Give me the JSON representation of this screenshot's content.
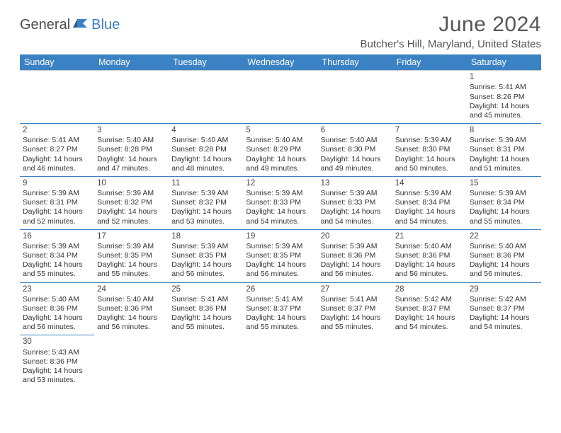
{
  "brand": {
    "part1": "General",
    "part2": "Blue"
  },
  "title": "June 2024",
  "location": "Butcher's Hill, Maryland, United States",
  "colors": {
    "header_bg": "#3b82c4",
    "header_text": "#ffffff",
    "border": "#3b82c4",
    "text": "#333333",
    "brand_gray": "#4a4a4a",
    "brand_blue": "#3b7fc4"
  },
  "typography": {
    "title_fontsize": 30,
    "location_fontsize": 15,
    "header_cell_fontsize": 12.5,
    "cell_fontsize": 10.5
  },
  "weekdays": [
    "Sunday",
    "Monday",
    "Tuesday",
    "Wednesday",
    "Thursday",
    "Friday",
    "Saturday"
  ],
  "weeks": [
    [
      null,
      null,
      null,
      null,
      null,
      null,
      {
        "n": "1",
        "sr": "Sunrise: 5:41 AM",
        "ss": "Sunset: 8:26 PM",
        "d1": "Daylight: 14 hours",
        "d2": "and 45 minutes."
      }
    ],
    [
      {
        "n": "2",
        "sr": "Sunrise: 5:41 AM",
        "ss": "Sunset: 8:27 PM",
        "d1": "Daylight: 14 hours",
        "d2": "and 46 minutes."
      },
      {
        "n": "3",
        "sr": "Sunrise: 5:40 AM",
        "ss": "Sunset: 8:28 PM",
        "d1": "Daylight: 14 hours",
        "d2": "and 47 minutes."
      },
      {
        "n": "4",
        "sr": "Sunrise: 5:40 AM",
        "ss": "Sunset: 8:28 PM",
        "d1": "Daylight: 14 hours",
        "d2": "and 48 minutes."
      },
      {
        "n": "5",
        "sr": "Sunrise: 5:40 AM",
        "ss": "Sunset: 8:29 PM",
        "d1": "Daylight: 14 hours",
        "d2": "and 49 minutes."
      },
      {
        "n": "6",
        "sr": "Sunrise: 5:40 AM",
        "ss": "Sunset: 8:30 PM",
        "d1": "Daylight: 14 hours",
        "d2": "and 49 minutes."
      },
      {
        "n": "7",
        "sr": "Sunrise: 5:39 AM",
        "ss": "Sunset: 8:30 PM",
        "d1": "Daylight: 14 hours",
        "d2": "and 50 minutes."
      },
      {
        "n": "8",
        "sr": "Sunrise: 5:39 AM",
        "ss": "Sunset: 8:31 PM",
        "d1": "Daylight: 14 hours",
        "d2": "and 51 minutes."
      }
    ],
    [
      {
        "n": "9",
        "sr": "Sunrise: 5:39 AM",
        "ss": "Sunset: 8:31 PM",
        "d1": "Daylight: 14 hours",
        "d2": "and 52 minutes."
      },
      {
        "n": "10",
        "sr": "Sunrise: 5:39 AM",
        "ss": "Sunset: 8:32 PM",
        "d1": "Daylight: 14 hours",
        "d2": "and 52 minutes."
      },
      {
        "n": "11",
        "sr": "Sunrise: 5:39 AM",
        "ss": "Sunset: 8:32 PM",
        "d1": "Daylight: 14 hours",
        "d2": "and 53 minutes."
      },
      {
        "n": "12",
        "sr": "Sunrise: 5:39 AM",
        "ss": "Sunset: 8:33 PM",
        "d1": "Daylight: 14 hours",
        "d2": "and 54 minutes."
      },
      {
        "n": "13",
        "sr": "Sunrise: 5:39 AM",
        "ss": "Sunset: 8:33 PM",
        "d1": "Daylight: 14 hours",
        "d2": "and 54 minutes."
      },
      {
        "n": "14",
        "sr": "Sunrise: 5:39 AM",
        "ss": "Sunset: 8:34 PM",
        "d1": "Daylight: 14 hours",
        "d2": "and 54 minutes."
      },
      {
        "n": "15",
        "sr": "Sunrise: 5:39 AM",
        "ss": "Sunset: 8:34 PM",
        "d1": "Daylight: 14 hours",
        "d2": "and 55 minutes."
      }
    ],
    [
      {
        "n": "16",
        "sr": "Sunrise: 5:39 AM",
        "ss": "Sunset: 8:34 PM",
        "d1": "Daylight: 14 hours",
        "d2": "and 55 minutes."
      },
      {
        "n": "17",
        "sr": "Sunrise: 5:39 AM",
        "ss": "Sunset: 8:35 PM",
        "d1": "Daylight: 14 hours",
        "d2": "and 55 minutes."
      },
      {
        "n": "18",
        "sr": "Sunrise: 5:39 AM",
        "ss": "Sunset: 8:35 PM",
        "d1": "Daylight: 14 hours",
        "d2": "and 56 minutes."
      },
      {
        "n": "19",
        "sr": "Sunrise: 5:39 AM",
        "ss": "Sunset: 8:35 PM",
        "d1": "Daylight: 14 hours",
        "d2": "and 56 minutes."
      },
      {
        "n": "20",
        "sr": "Sunrise: 5:39 AM",
        "ss": "Sunset: 8:36 PM",
        "d1": "Daylight: 14 hours",
        "d2": "and 56 minutes."
      },
      {
        "n": "21",
        "sr": "Sunrise: 5:40 AM",
        "ss": "Sunset: 8:36 PM",
        "d1": "Daylight: 14 hours",
        "d2": "and 56 minutes."
      },
      {
        "n": "22",
        "sr": "Sunrise: 5:40 AM",
        "ss": "Sunset: 8:36 PM",
        "d1": "Daylight: 14 hours",
        "d2": "and 56 minutes."
      }
    ],
    [
      {
        "n": "23",
        "sr": "Sunrise: 5:40 AM",
        "ss": "Sunset: 8:36 PM",
        "d1": "Daylight: 14 hours",
        "d2": "and 56 minutes."
      },
      {
        "n": "24",
        "sr": "Sunrise: 5:40 AM",
        "ss": "Sunset: 8:36 PM",
        "d1": "Daylight: 14 hours",
        "d2": "and 56 minutes."
      },
      {
        "n": "25",
        "sr": "Sunrise: 5:41 AM",
        "ss": "Sunset: 8:36 PM",
        "d1": "Daylight: 14 hours",
        "d2": "and 55 minutes."
      },
      {
        "n": "26",
        "sr": "Sunrise: 5:41 AM",
        "ss": "Sunset: 8:37 PM",
        "d1": "Daylight: 14 hours",
        "d2": "and 55 minutes."
      },
      {
        "n": "27",
        "sr": "Sunrise: 5:41 AM",
        "ss": "Sunset: 8:37 PM",
        "d1": "Daylight: 14 hours",
        "d2": "and 55 minutes."
      },
      {
        "n": "28",
        "sr": "Sunrise: 5:42 AM",
        "ss": "Sunset: 8:37 PM",
        "d1": "Daylight: 14 hours",
        "d2": "and 54 minutes."
      },
      {
        "n": "29",
        "sr": "Sunrise: 5:42 AM",
        "ss": "Sunset: 8:37 PM",
        "d1": "Daylight: 14 hours",
        "d2": "and 54 minutes."
      }
    ],
    [
      {
        "n": "30",
        "sr": "Sunrise: 5:43 AM",
        "ss": "Sunset: 8:36 PM",
        "d1": "Daylight: 14 hours",
        "d2": "and 53 minutes."
      },
      null,
      null,
      null,
      null,
      null,
      null
    ]
  ]
}
